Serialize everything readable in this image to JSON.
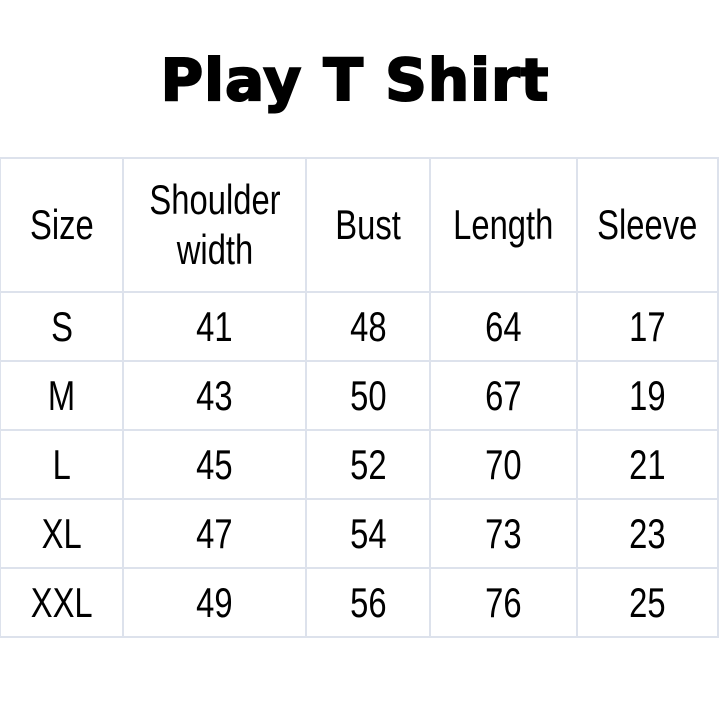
{
  "title": "Play T Shirt",
  "table": {
    "headers": [
      "Size",
      "Shoulder width",
      "Bust",
      "Length",
      "Sleeve"
    ],
    "rows": [
      [
        "S",
        "41",
        "48",
        "64",
        "17"
      ],
      [
        "M",
        "43",
        "50",
        "67",
        "19"
      ],
      [
        "L",
        "45",
        "52",
        "70",
        "21"
      ],
      [
        "XL",
        "47",
        "54",
        "73",
        "23"
      ],
      [
        "XXL",
        "49",
        "56",
        "76",
        "25"
      ]
    ]
  },
  "colors": {
    "gridline": "#dde2ec",
    "text": "#000000"
  }
}
